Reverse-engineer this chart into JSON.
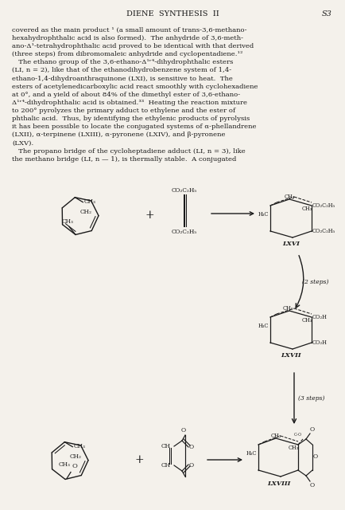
{
  "title_center": "DIENE  SYNTHESIS  II",
  "title_page": "S3",
  "bg_color": "#f4f1eb",
  "text_color": "#1a1a1a",
  "figsize": [
    4.34,
    6.4
  ],
  "dpi": 100,
  "body_lines": [
    "covered as the main product ¹ (a small amount of trans-3,6-methano-",
    "hexahydrophthalic acid is also formed).  The anhydride of 3,6-meth-",
    "ano-Δ¹-tetrahydrophthalic acid proved to be identical with that derived",
    "(three steps) from dibromomaleic anhydride and cyclopentadiene.¹²",
    "   The ethano group of the 3,6-ethano-Δ¹ʳ⁴-dihydrophthalic esters",
    "(LI, n = 2), like that of the ethanodihydrobenzene system of 1,4-",
    "ethano-1,4-dihydroanthraquinone (LXI), is sensitive to heat.  The",
    "esters of acetylenedicarboxylic acid react smoothly with cyclohexadiene",
    "at 0°, and a yield of about 84% of the dimethyl ester of 3,6-ethano-",
    "Δ¹ʳ⁴-dihydrophthalic acid is obtained.³³  Heating the reaction mixture",
    "to 200° pyrolyzes the primary adduct to ethylene and the ester of",
    "phthalic acid.  Thus, by identifying the ethylenic products of pyrolysis",
    "it has been possible to locate the conjugated systems of α-phellandrene",
    "(LXII), α-terpinene (LXIII), α-pyronene (LXIV), and β-pyronene",
    "(LXV).",
    "   The propano bridge of the cycloheptadiene adduct (LI, n = 3), like",
    "the methano bridge (LI, n — 1), is thermally stable.  A conjugated"
  ]
}
